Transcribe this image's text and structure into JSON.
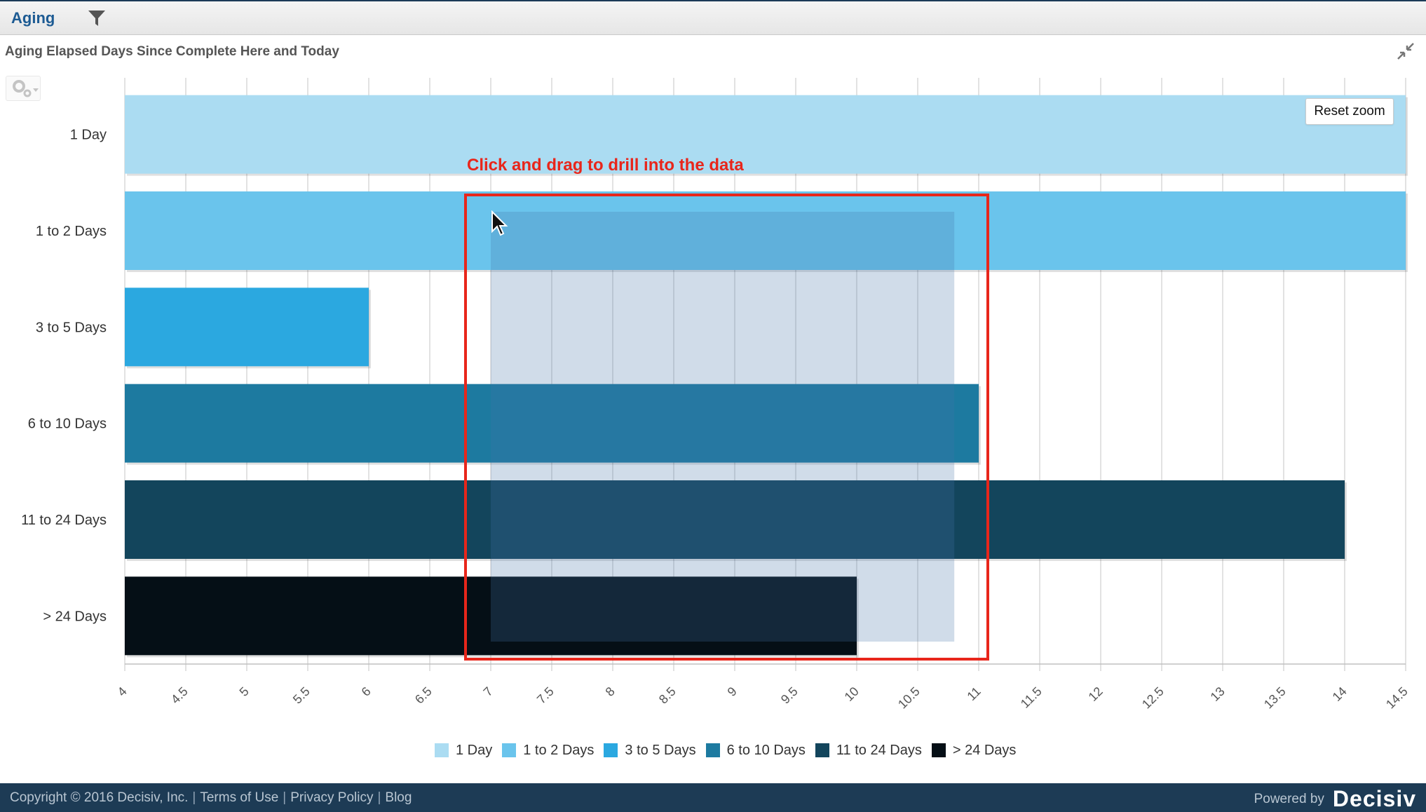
{
  "header": {
    "tab_label": "Aging",
    "filter_icon": "filter-icon"
  },
  "panel": {
    "title": "Aging Elapsed Days Since Complete Here and Today",
    "collapse_icon": "collapse-icon",
    "gear_icon": "gear-icon"
  },
  "reset_zoom_label": "Reset zoom",
  "annotation": {
    "text": "Click and drag to drill into the data",
    "color": "#e8261b"
  },
  "chart_data": {
    "type": "bar",
    "orientation": "horizontal",
    "categories": [
      "1 Day",
      "1 to 2 Days",
      "3 to 5 Days",
      "6 to 10 Days",
      "11 to 24 Days",
      "> 24 Days"
    ],
    "values": [
      14.5,
      14.5,
      6,
      11,
      14,
      10
    ],
    "colors": [
      "#abdcf2",
      "#6ac4ec",
      "#2ba8e0",
      "#1d7aa0",
      "#13455c",
      "#050f16"
    ],
    "xlim": [
      4,
      14.5
    ],
    "x_ticks": [
      "4",
      "4.5",
      "5",
      "5.5",
      "6",
      "6.5",
      "7",
      "7.5",
      "8",
      "8.5",
      "9",
      "9.5",
      "10",
      "10.5",
      "11",
      "11.5",
      "12",
      "12.5",
      "13",
      "13.5",
      "14",
      "14.5"
    ],
    "grid": true,
    "legend": "bottom",
    "selection": {
      "x_range": [
        7,
        10.8
      ]
    }
  },
  "footer": {
    "copyright": "Copyright © 2016 Decisiv, Inc.",
    "links": [
      "Terms of Use",
      "Privacy Policy",
      "Blog"
    ],
    "powered_by": "Powered by",
    "brand": "Decisiv"
  }
}
